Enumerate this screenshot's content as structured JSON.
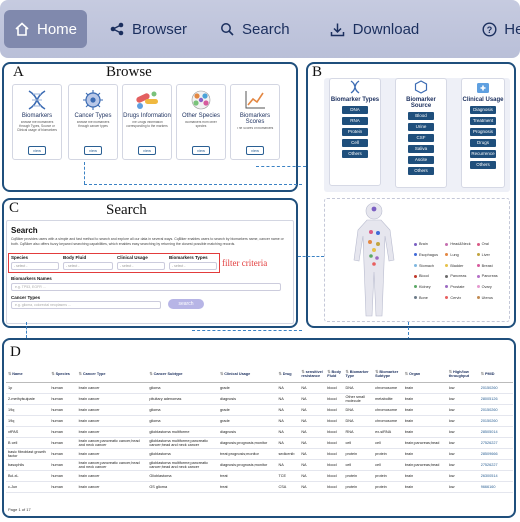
{
  "nav": {
    "items": [
      {
        "label": "Home",
        "icon": "home-icon"
      },
      {
        "label": "Browser",
        "icon": "share-icon"
      },
      {
        "label": "Search",
        "icon": "search-icon"
      },
      {
        "label": "Download",
        "icon": "download-icon"
      },
      {
        "label": "Help",
        "icon": "help-icon"
      }
    ]
  },
  "panelA": {
    "letter": "A",
    "title": "Browse",
    "cards": [
      {
        "title": "Biomarkers",
        "desc": "Browse the biomarkers through Types, Source or Clinical usage of biomarkers",
        "view": "view",
        "icon": "dna-icon"
      },
      {
        "title": "Cancer Types",
        "desc": "Browse the biomarkers through cancer types",
        "view": "view",
        "icon": "cell-icon"
      },
      {
        "title": "Drugs Information",
        "desc": "The Drugs information corresponding to the markers",
        "view": "view",
        "icon": "pills-icon"
      },
      {
        "title": "Other Species",
        "desc": "Biomarkers from other species",
        "view": "view",
        "icon": "species-icon"
      },
      {
        "title": "Biomarkers Scores",
        "desc": "The Scores of biomarkers",
        "view": "view",
        "icon": "chart-icon"
      }
    ]
  },
  "panelB": {
    "letter": "B",
    "columns": [
      {
        "title": "Biomarker Types",
        "icon": "dna-icon",
        "items": [
          "DNA",
          "RNA",
          "Protein",
          "Cell",
          "Others"
        ]
      },
      {
        "title": "Biomarker Source",
        "icon": "hexagon-icon",
        "items": [
          "Blood",
          "Urine",
          "CSF",
          "Saliva",
          "Ascite",
          "Others"
        ]
      },
      {
        "title": "Clinical Usage",
        "icon": "medkit-icon",
        "items": [
          "Diagnosis",
          "Treatment",
          "Prognosis",
          "Drugs",
          "Recurrence",
          "Others"
        ]
      }
    ],
    "legend": [
      "Brain",
      "Head&Neck",
      "Oral",
      "Esophagus",
      "Lung",
      "Liver",
      "Stomach",
      "Bladder",
      "Breast",
      "Blood",
      "Pancreas",
      "Pancreas",
      "Kidney",
      "Prostate",
      "Ovary",
      "Bone",
      "Cervix",
      "Uterus"
    ],
    "legend_colors": [
      "#7b5fc2",
      "#c46fb0",
      "#d95a84",
      "#3f6ad8",
      "#e38742",
      "#c2a43f",
      "#7fb7e0",
      "#e6c24a",
      "#d65a9d",
      "#c0392b",
      "#6b6b6b",
      "#b46fc7",
      "#5aa865",
      "#9c6bc2",
      "#e59ad0",
      "#6c7a89",
      "#e85f5f",
      "#c28b52"
    ]
  },
  "panelC": {
    "letter": "C",
    "title": "Search",
    "heading": "Search",
    "desc": "CqBiker provides users with a simple and fast method to search and explore all our data in several ways. CqBiker enables users to search by biomarkers name, cancer name or both. CqBiker also offers fuzzy keyword searching capabilities, which enables easy searching by returning the closest possible matching records.",
    "filters": [
      {
        "label": "Species",
        "value": "- select -"
      },
      {
        "label": "Body Fluid",
        "value": "- select -"
      },
      {
        "label": "Clinical Usage",
        "value": "- select -"
      },
      {
        "label": "Biomarkers Types",
        "value": "- select -"
      }
    ],
    "filter_criteria": "filter criteria",
    "biomarker_label": "Biomarkers Names",
    "biomarker_placeholder": "e.g. TP53, EGFR ...",
    "cancer_label": "Cancer Types",
    "cancer_placeholder": "e.g. glioma, colorectal neoplasms ...",
    "search_button": "search"
  },
  "panelD": {
    "letter": "D",
    "columns": [
      "Name",
      "Species",
      "Cancer Type",
      "Cancer Subtype",
      "Clinical Usage",
      "Drug",
      "sensitive/ resistance",
      "Body Fluid",
      "Biomarker Type",
      "Biomarker Subtype",
      "Organ",
      "High/low throughput",
      "PMID"
    ],
    "rows": [
      [
        "1p",
        "human",
        "brain cancer",
        "glioma",
        "grade",
        "NA",
        "NA",
        "blood",
        "DNA",
        "chromosome",
        "brain",
        "low",
        "20150260"
      ],
      [
        "2-methylsulpate",
        "human",
        "brain cancer",
        "pituitary adenomas",
        "diagnosis",
        "NA",
        "NA",
        "blood",
        "Other small molecule",
        "metabolite",
        "brain",
        "low",
        "28005126"
      ],
      [
        "19q",
        "human",
        "brain cancer",
        "glioma",
        "grade",
        "NA",
        "NA",
        "blood",
        "DNA",
        "chromosome",
        "brain",
        "low",
        "20150260"
      ],
      [
        "19q",
        "human",
        "brain cancer",
        "glioma",
        "grade",
        "NA",
        "NA",
        "blood",
        "DNA",
        "chromosome",
        "brain",
        "low",
        "20150260"
      ],
      [
        "xfPAS",
        "human",
        "brain cancer",
        "glioblastoma multiforme",
        "diagnosis",
        "NA",
        "NA",
        "blood",
        "RNA",
        "ex-siRNA",
        "brain",
        "low",
        "28505014"
      ],
      [
        "B cell",
        "human",
        "brain cancer,pancreatic cancer,head and neck cancer",
        "glioblastoma multiforme;pancreatic cancer;head and neck cancer",
        "diagnosis;prognosis;monitor",
        "NA",
        "NA",
        "blood",
        "cell",
        "cell",
        "brain;pancreas;head",
        "low",
        "27526227"
      ],
      [
        "basic fibroblast growth factor",
        "human",
        "brain cancer",
        "glioblastoma",
        "treat;prognosis;monitor",
        "sedicenib",
        "NA",
        "blood",
        "protein",
        "protein",
        "brain",
        "low",
        "28509666"
      ],
      [
        "basophils",
        "human",
        "brain cancer,pancreatic cancer,head and neck cancer",
        "glioblastoma multiforme;pancreatic cancer;head and neck cancer",
        "diagnosis;prognosis;monitor",
        "NA",
        "NA",
        "blood",
        "cell",
        "cell",
        "brain;pancreas;head",
        "low",
        "27526227"
      ],
      [
        "Bcl-xL",
        "human",
        "brain cancer",
        "Glioblastoma",
        "treat",
        "TCE",
        "NA",
        "blood",
        "protein",
        "protein",
        "brain",
        "low",
        "26300514"
      ],
      [
        "c-Jun",
        "human",
        "brain cancer",
        "GS glioma",
        "treat",
        "CSA",
        "NA",
        "blood",
        "protein",
        "protein",
        "brain",
        "low",
        "9666160"
      ]
    ],
    "pagination": "Page 1 of 17"
  }
}
